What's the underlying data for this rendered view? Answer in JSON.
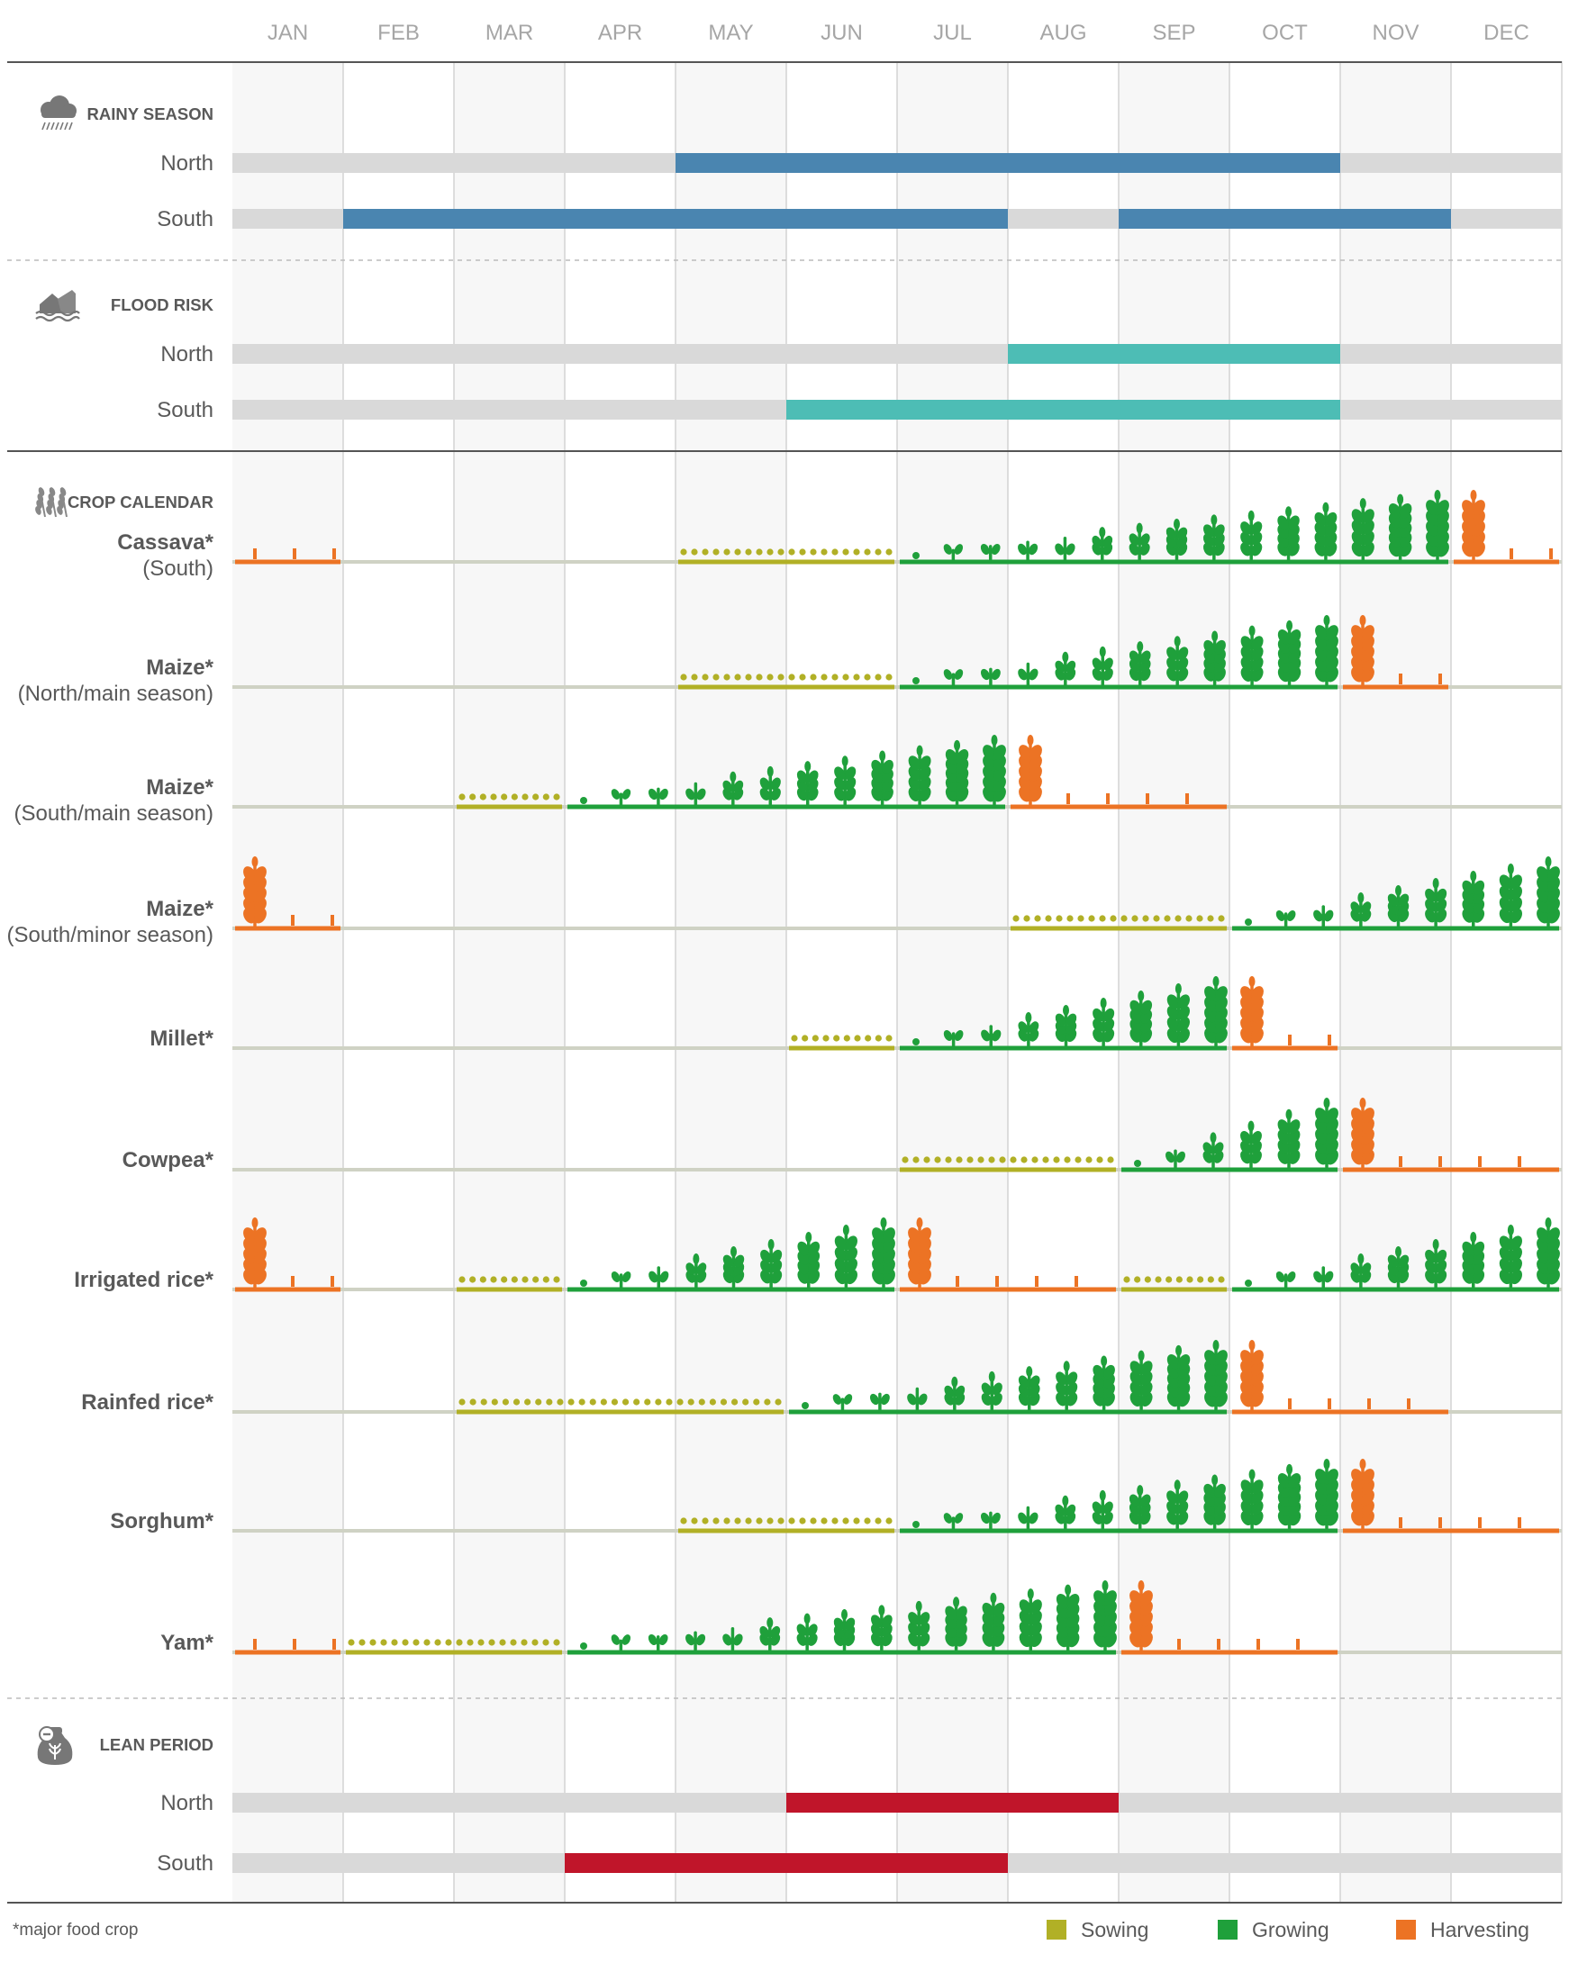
{
  "chart_data": {
    "type": "gantt",
    "months": [
      "JAN",
      "FEB",
      "MAR",
      "APR",
      "MAY",
      "JUN",
      "JUL",
      "AUG",
      "SEP",
      "OCT",
      "NOV",
      "DEC"
    ],
    "colors": {
      "rain": "#4a85b0",
      "flood": "#4dbdb5",
      "lean": "#c0152a",
      "sowing": "#b1b026",
      "growing": "#1fa03b",
      "harvesting": "#ec7324",
      "track": "#d9d9d9",
      "crop_track": "#cfd2c4",
      "shade": "#f7f7f7",
      "grid": "#d4d4d4",
      "month_text": "#a6a6a6",
      "label_text": "#595959"
    },
    "sections": {
      "rainy": {
        "title": "RAINY SEASON",
        "icon": "rain-cloud-icon",
        "rows": [
          {
            "label": "North",
            "periods": [
              [
                5,
                10
              ]
            ]
          },
          {
            "label": "South",
            "periods": [
              [
                2,
                7
              ],
              [
                9,
                11
              ]
            ]
          }
        ]
      },
      "flood": {
        "title": "FLOOD RISK",
        "icon": "flood-icon",
        "rows": [
          {
            "label": "North",
            "periods": [
              [
                8,
                10
              ]
            ]
          },
          {
            "label": "South",
            "periods": [
              [
                6,
                10
              ]
            ]
          }
        ]
      },
      "crops": {
        "title": "CROP CALENDAR",
        "icon": "wheat-icon",
        "rows": [
          {
            "label": [
              "Cassava*",
              "(South)"
            ],
            "bold": [
              true,
              false
            ],
            "sowing": [
              [
                5,
                6
              ]
            ],
            "growing": [
              [
                7,
                11
              ]
            ],
            "harvesting": [
              [
                1,
                1
              ],
              [
                12,
                12
              ]
            ]
          },
          {
            "label": [
              "Maize*",
              "(North/main season)"
            ],
            "bold": [
              true,
              false
            ],
            "sowing": [
              [
                5,
                6
              ]
            ],
            "growing": [
              [
                7,
                10
              ]
            ],
            "harvesting": [
              [
                11,
                11
              ]
            ]
          },
          {
            "label": [
              "Maize*",
              "(South/main season)"
            ],
            "bold": [
              true,
              false
            ],
            "sowing": [
              [
                3,
                3
              ]
            ],
            "growing": [
              [
                4,
                7
              ]
            ],
            "harvesting": [
              [
                8,
                9
              ]
            ]
          },
          {
            "label": [
              "Maize*",
              "(South/minor season)"
            ],
            "bold": [
              true,
              false
            ],
            "sowing": [
              [
                8,
                9
              ]
            ],
            "growing": [
              [
                10,
                12
              ]
            ],
            "harvesting": [
              [
                1,
                1
              ]
            ]
          },
          {
            "label": [
              "Millet*"
            ],
            "bold": [
              true
            ],
            "sowing": [
              [
                6,
                6
              ]
            ],
            "growing": [
              [
                7,
                9
              ]
            ],
            "harvesting": [
              [
                10,
                10
              ]
            ]
          },
          {
            "label": [
              "Cowpea*"
            ],
            "bold": [
              true
            ],
            "sowing": [
              [
                7,
                8
              ]
            ],
            "growing": [
              [
                9,
                10
              ]
            ],
            "harvesting": [
              [
                11,
                12
              ]
            ]
          },
          {
            "label": [
              "Irrigated rice*"
            ],
            "bold": [
              true
            ],
            "sowing": [
              [
                3,
                3
              ],
              [
                9,
                9
              ]
            ],
            "growing": [
              [
                4,
                6
              ],
              [
                10,
                12
              ]
            ],
            "harvesting": [
              [
                1,
                1
              ],
              [
                7,
                8
              ]
            ]
          },
          {
            "label": [
              "Rainfed rice*"
            ],
            "bold": [
              true
            ],
            "sowing": [
              [
                3,
                5
              ]
            ],
            "growing": [
              [
                6,
                9
              ]
            ],
            "harvesting": [
              [
                10,
                11
              ]
            ]
          },
          {
            "label": [
              "Sorghum*"
            ],
            "bold": [
              true
            ],
            "sowing": [
              [
                5,
                6
              ]
            ],
            "growing": [
              [
                7,
                10
              ]
            ],
            "harvesting": [
              [
                11,
                12
              ]
            ]
          },
          {
            "label": [
              "Yam*"
            ],
            "bold": [
              true
            ],
            "sowing": [
              [
                2,
                3
              ]
            ],
            "growing": [
              [
                4,
                8
              ]
            ],
            "harvesting": [
              [
                1,
                1
              ],
              [
                9,
                10
              ]
            ]
          }
        ]
      },
      "lean": {
        "title": "LEAN PERIOD",
        "icon": "food-sack-icon",
        "rows": [
          {
            "label": "North",
            "periods": [
              [
                6,
                8
              ]
            ]
          },
          {
            "label": "South",
            "periods": [
              [
                4,
                7
              ]
            ]
          }
        ]
      }
    },
    "legend": [
      {
        "label": "Sowing",
        "color": "#b1b026"
      },
      {
        "label": "Growing",
        "color": "#1fa03b"
      },
      {
        "label": "Harvesting",
        "color": "#ec7324"
      }
    ],
    "footnote": "*major food crop"
  }
}
